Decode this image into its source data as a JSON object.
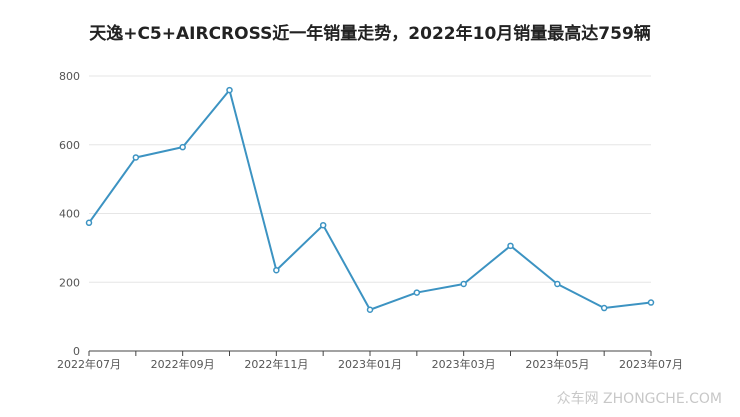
{
  "chart_data": {
    "type": "line",
    "title": "天逸+C5+AIRCROSS近一年销量走势，2022年10月销量最高达759辆",
    "xlabel": "",
    "ylabel": "",
    "x": [
      "2022年07月",
      "2022年08月",
      "2022年09月",
      "2022年10月",
      "2022年11月",
      "2022年12月",
      "2023年01月",
      "2023年02月",
      "2023年03月",
      "2023年04月",
      "2023年05月",
      "2023年06月",
      "2023年07月"
    ],
    "x_tick_labels": [
      "2022年07月",
      "2022年09月",
      "2022年11月",
      "2023年01月",
      "2023年03月",
      "2023年05月",
      "2023年07月"
    ],
    "values": [
      373,
      563,
      593,
      759,
      235,
      366,
      120,
      170,
      195,
      306,
      195,
      125,
      141
    ],
    "ylim": [
      0,
      800
    ],
    "y_ticks": [
      0,
      200,
      400,
      600,
      800
    ],
    "grid": true,
    "legend": "none",
    "color": "#3c93c2"
  },
  "watermark": "众车网 ZHONGCHE.COM"
}
